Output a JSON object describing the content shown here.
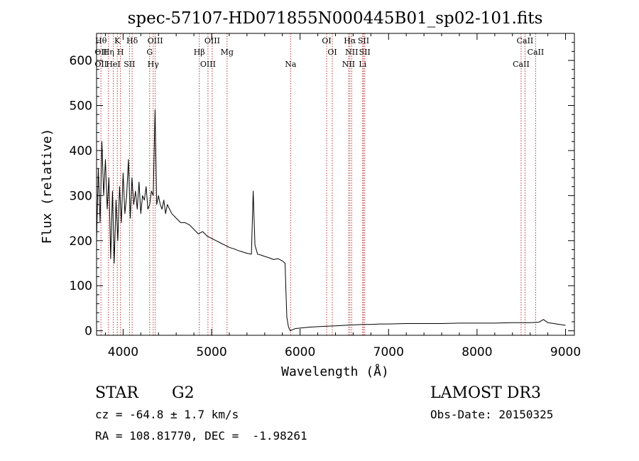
{
  "chart_data": {
    "type": "line",
    "title": "spec-57107-HD071855N000445B01_sp02-101.fits",
    "xlabel": "Wavelength (Å)",
    "ylabel": "Flux (relative)",
    "xlim": [
      3700,
      9100
    ],
    "ylim": [
      -10,
      660
    ],
    "xticks": [
      4000,
      5000,
      6000,
      7000,
      8000,
      9000
    ],
    "xtick_labels": [
      "4000",
      "5000",
      "6000",
      "7000",
      "8000",
      "9000"
    ],
    "yticks": [
      0,
      100,
      200,
      300,
      400,
      500,
      600
    ],
    "ytick_labels": [
      "0",
      "100",
      "200",
      "300",
      "400",
      "500",
      "600"
    ],
    "series": [
      {
        "name": "flux",
        "x": [
          3700,
          3720,
          3740,
          3760,
          3780,
          3800,
          3820,
          3840,
          3860,
          3880,
          3900,
          3920,
          3940,
          3960,
          3980,
          4000,
          4020,
          4040,
          4060,
          4080,
          4100,
          4120,
          4140,
          4160,
          4180,
          4200,
          4220,
          4240,
          4260,
          4280,
          4300,
          4320,
          4340,
          4361,
          4380,
          4400,
          4420,
          4440,
          4460,
          4480,
          4500,
          4550,
          4600,
          4650,
          4700,
          4750,
          4800,
          4850,
          4900,
          4950,
          5000,
          5050,
          5100,
          5150,
          5200,
          5250,
          5300,
          5350,
          5400,
          5450,
          5470,
          5490,
          5520,
          5560,
          5600,
          5650,
          5700,
          5750,
          5800,
          5830,
          5840,
          5850,
          5870,
          5890,
          5920,
          5950,
          6000,
          6100,
          6200,
          6300,
          6400,
          6500,
          6600,
          6700,
          6800,
          6900,
          7000,
          7200,
          7400,
          7600,
          7800,
          8000,
          8200,
          8400,
          8600,
          8700,
          8750,
          8800,
          8900,
          9000
        ],
        "y": [
          200,
          360,
          240,
          420,
          300,
          380,
          270,
          340,
          160,
          310,
          150,
          290,
          200,
          320,
          240,
          350,
          260,
          300,
          380,
          250,
          340,
          280,
          310,
          270,
          330,
          260,
          300,
          290,
          320,
          270,
          280,
          310,
          300,
          490,
          280,
          300,
          280,
          270,
          290,
          260,
          280,
          260,
          250,
          240,
          240,
          235,
          225,
          215,
          220,
          210,
          205,
          200,
          195,
          190,
          185,
          182,
          178,
          175,
          172,
          170,
          310,
          190,
          170,
          168,
          165,
          162,
          158,
          160,
          155,
          150,
          90,
          30,
          8,
          0,
          3,
          5,
          6,
          8,
          9,
          10,
          11,
          12,
          13,
          14,
          14,
          15,
          15,
          16,
          16,
          16,
          17,
          17,
          17,
          18,
          18,
          19,
          25,
          18,
          15,
          12
        ]
      }
    ],
    "annotations": [
      {
        "x": 3750,
        "labels": [
          "Hθ",
          "OII",
          "OII"
        ]
      },
      {
        "x": 3835,
        "labels": [
          "Hη"
        ]
      },
      {
        "x": 3889,
        "labels": [
          "HeI"
        ]
      },
      {
        "x": 3934,
        "labels": [
          "K"
        ]
      },
      {
        "x": 3970,
        "labels": [
          "H"
        ]
      },
      {
        "x": 4072,
        "labels": [
          "SII"
        ]
      },
      {
        "x": 4102,
        "labels": [
          "Hδ"
        ]
      },
      {
        "x": 4300,
        "labels": [
          "G"
        ]
      },
      {
        "x": 4340,
        "labels": [
          "Hγ"
        ]
      },
      {
        "x": 4363,
        "labels": [
          "OIII"
        ]
      },
      {
        "x": 4861,
        "labels": [
          "Hβ"
        ]
      },
      {
        "x": 4959,
        "labels": [
          "OIII"
        ]
      },
      {
        "x": 5007,
        "labels": [
          "OIII"
        ]
      },
      {
        "x": 5175,
        "labels": [
          "Mg"
        ]
      },
      {
        "x": 5893,
        "labels": [
          "Na"
        ]
      },
      {
        "x": 6300,
        "labels": [
          "OI"
        ]
      },
      {
        "x": 6364,
        "labels": [
          "OI"
        ]
      },
      {
        "x": 6548,
        "labels": [
          "NII"
        ]
      },
      {
        "x": 6563,
        "labels": [
          "Hα"
        ]
      },
      {
        "x": 6583,
        "labels": [
          "NII"
        ]
      },
      {
        "x": 6707,
        "labels": [
          "Li"
        ]
      },
      {
        "x": 6717,
        "labels": [
          "SII"
        ]
      },
      {
        "x": 6731,
        "labels": [
          "SII"
        ]
      },
      {
        "x": 8498,
        "labels": [
          "CaII"
        ]
      },
      {
        "x": 8542,
        "labels": [
          "CaII"
        ]
      },
      {
        "x": 8662,
        "labels": [
          "CaII"
        ]
      }
    ]
  },
  "footer": {
    "object_class": "STAR",
    "subclass": "G2",
    "survey": "LAMOST DR3",
    "redshift": "cz = -64.8 ± 1.7 km/s",
    "obs_date": "Obs-Date: 20150325",
    "coords": "RA = 108.81770, DEC =  -1.98261"
  }
}
